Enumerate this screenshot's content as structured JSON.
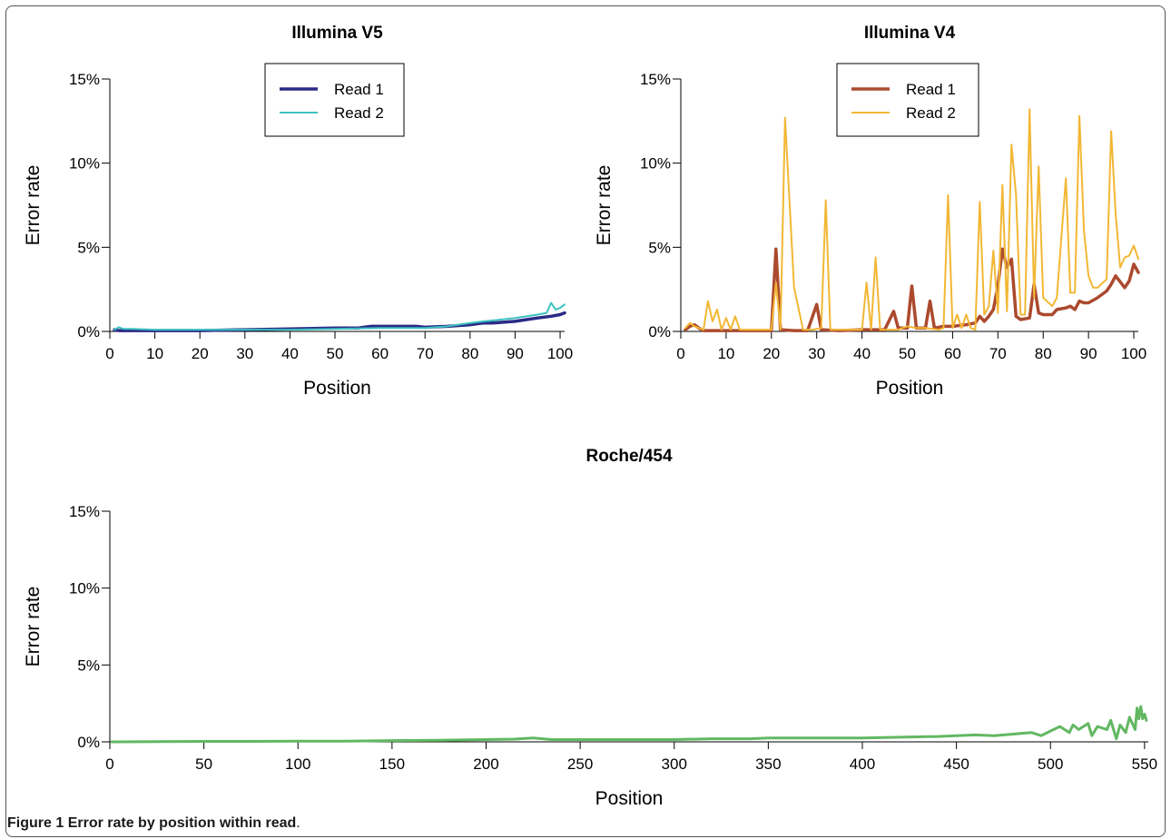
{
  "colors": {
    "v5_read1": "#2b2b86",
    "v5_read2": "#3cc1c1",
    "v4_read1": "#ab4a2e",
    "v4_read2": "#f2b734",
    "roche": "#62b862"
  },
  "caption": {
    "figure_number": "Figure 1",
    "text": "Error rate by position within read",
    "period": "."
  },
  "chart_data": [
    {
      "id": "v5",
      "type": "line",
      "title": "Illumina V5",
      "xlabel": "Position",
      "ylabel": "Error rate",
      "xlim": [
        0,
        101
      ],
      "ylim": [
        0,
        15
      ],
      "xticks": [
        0,
        10,
        20,
        30,
        40,
        50,
        60,
        70,
        80,
        90,
        100
      ],
      "yticks": [
        0,
        5,
        10,
        15
      ],
      "ytick_labels": [
        "0%",
        "5%",
        "10%",
        "15%"
      ],
      "legend": "top-center",
      "series": [
        {
          "name": "Read 1",
          "color_key": "v5_read1",
          "width": 3.5,
          "x": [
            1,
            2,
            5,
            10,
            20,
            30,
            40,
            50,
            55,
            58,
            60,
            65,
            68,
            70,
            75,
            80,
            83,
            85,
            90,
            95,
            98,
            100,
            101
          ],
          "y": [
            0.1,
            0.05,
            0.05,
            0.05,
            0.05,
            0.1,
            0.15,
            0.2,
            0.2,
            0.3,
            0.3,
            0.3,
            0.3,
            0.25,
            0.3,
            0.4,
            0.5,
            0.5,
            0.6,
            0.8,
            0.9,
            1.0,
            1.1
          ]
        },
        {
          "name": "Read 2",
          "color_key": "v5_read2",
          "width": 2,
          "x": [
            1,
            2,
            3,
            5,
            10,
            20,
            30,
            40,
            50,
            60,
            70,
            75,
            80,
            83,
            85,
            90,
            95,
            97,
            98,
            99,
            100,
            101
          ],
          "y": [
            0.1,
            0.25,
            0.15,
            0.15,
            0.1,
            0.1,
            0.1,
            0.1,
            0.15,
            0.2,
            0.2,
            0.3,
            0.5,
            0.6,
            0.65,
            0.8,
            1.0,
            1.1,
            1.7,
            1.3,
            1.4,
            1.6
          ]
        }
      ]
    },
    {
      "id": "v4",
      "type": "line",
      "title": "Illumina V4",
      "xlabel": "Position",
      "ylabel": "Error rate",
      "xlim": [
        0,
        101
      ],
      "ylim": [
        0,
        15
      ],
      "xticks": [
        0,
        10,
        20,
        30,
        40,
        50,
        60,
        70,
        80,
        90,
        100
      ],
      "yticks": [
        0,
        5,
        10,
        15
      ],
      "ytick_labels": [
        "0%",
        "5%",
        "10%",
        "15%"
      ],
      "legend": "top-center",
      "series": [
        {
          "name": "Read 1",
          "color_key": "v4_read1",
          "width": 3.5,
          "x": [
            1,
            2,
            3,
            4,
            5,
            10,
            15,
            20,
            21,
            22,
            25,
            28,
            30,
            31,
            35,
            40,
            45,
            47,
            48,
            50,
            51,
            52,
            54,
            55,
            56,
            58,
            60,
            63,
            65,
            66,
            67,
            68,
            69,
            70,
            71,
            72,
            73,
            74,
            75,
            77,
            78,
            79,
            80,
            82,
            83,
            85,
            86,
            87,
            88,
            89,
            90,
            92,
            94,
            95,
            96,
            98,
            99,
            100,
            101
          ],
          "y": [
            0.1,
            0.3,
            0.4,
            0.2,
            0.05,
            0.05,
            0.05,
            0.05,
            4.9,
            0.1,
            0.05,
            0.05,
            1.6,
            0.1,
            0.05,
            0.1,
            0.1,
            1.2,
            0.2,
            0.2,
            2.7,
            0.2,
            0.2,
            1.8,
            0.2,
            0.3,
            0.3,
            0.4,
            0.5,
            0.9,
            0.6,
            0.9,
            1.3,
            2.7,
            4.9,
            3.8,
            4.3,
            0.9,
            0.7,
            0.8,
            2.8,
            1.1,
            1.0,
            1.0,
            1.3,
            1.4,
            1.5,
            1.3,
            1.8,
            1.7,
            1.7,
            2.0,
            2.4,
            2.8,
            3.3,
            2.6,
            3.0,
            4.0,
            3.5
          ]
        },
        {
          "name": "Read 2",
          "color_key": "v4_read2",
          "width": 2,
          "x": [
            1,
            2,
            3,
            5,
            6,
            7,
            8,
            9,
            10,
            11,
            12,
            13,
            15,
            18,
            20,
            21,
            22,
            23,
            25,
            27,
            29,
            31,
            32,
            33,
            38,
            40,
            41,
            42,
            43,
            44,
            48,
            50,
            52,
            54,
            57,
            58,
            59,
            60,
            61,
            62,
            63,
            64,
            65,
            66,
            67,
            68,
            69,
            70,
            71,
            72,
            73,
            74,
            75,
            76,
            77,
            78,
            79,
            80,
            82,
            83,
            85,
            86,
            87,
            88,
            89,
            90,
            91,
            92,
            94,
            95,
            96,
            97,
            98,
            99,
            100,
            101
          ],
          "y": [
            0.2,
            0.5,
            0.3,
            0.1,
            1.8,
            0.6,
            1.3,
            0.1,
            0.8,
            0.1,
            0.9,
            0.1,
            0.1,
            0.1,
            0.1,
            2.9,
            0.1,
            12.7,
            2.6,
            0.1,
            0.1,
            0.2,
            7.8,
            0.1,
            0.1,
            0.1,
            2.9,
            0.1,
            4.4,
            0.1,
            0.1,
            0.3,
            0.2,
            0.2,
            0.1,
            0.2,
            8.1,
            0.2,
            1.0,
            0.2,
            1.0,
            0.2,
            0.1,
            7.7,
            1.0,
            1.5,
            4.8,
            1.1,
            8.7,
            1.2,
            11.1,
            8.1,
            1.0,
            1.0,
            13.2,
            2.0,
            9.8,
            2.0,
            1.5,
            2.0,
            9.1,
            2.3,
            2.3,
            12.8,
            6.0,
            3.3,
            2.6,
            2.6,
            3.1,
            11.9,
            7.0,
            3.8,
            4.4,
            4.5,
            5.1,
            4.3
          ]
        }
      ]
    },
    {
      "id": "roche",
      "type": "line",
      "title": "Roche/454",
      "xlabel": "Position",
      "ylabel": "Error rate",
      "xlim": [
        0,
        552
      ],
      "ylim": [
        0,
        15
      ],
      "xticks": [
        0,
        50,
        100,
        150,
        200,
        250,
        300,
        350,
        400,
        450,
        500,
        550
      ],
      "yticks": [
        0,
        5,
        10,
        15
      ],
      "ytick_labels": [
        "0%",
        "5%",
        "10%",
        "15%"
      ],
      "legend": "none",
      "series": [
        {
          "name": "",
          "color_key": "roche",
          "width": 3,
          "x": [
            1,
            25,
            50,
            75,
            100,
            125,
            150,
            175,
            200,
            215,
            225,
            235,
            250,
            275,
            300,
            320,
            340,
            350,
            360,
            380,
            400,
            420,
            440,
            450,
            460,
            470,
            480,
            490,
            495,
            500,
            505,
            510,
            512,
            515,
            520,
            522,
            525,
            530,
            532,
            535,
            537,
            540,
            542,
            545,
            546,
            547,
            548,
            549,
            550,
            551
          ],
          "y": [
            0.0,
            0.02,
            0.03,
            0.03,
            0.05,
            0.05,
            0.08,
            0.1,
            0.15,
            0.18,
            0.25,
            0.15,
            0.15,
            0.15,
            0.15,
            0.2,
            0.2,
            0.25,
            0.25,
            0.25,
            0.25,
            0.3,
            0.35,
            0.4,
            0.45,
            0.4,
            0.5,
            0.6,
            0.4,
            0.7,
            1.0,
            0.6,
            1.1,
            0.8,
            1.2,
            0.4,
            1.0,
            0.8,
            1.4,
            0.2,
            1.1,
            0.6,
            1.6,
            0.8,
            2.2,
            1.5,
            2.3,
            1.5,
            1.8,
            1.4
          ]
        }
      ]
    }
  ]
}
